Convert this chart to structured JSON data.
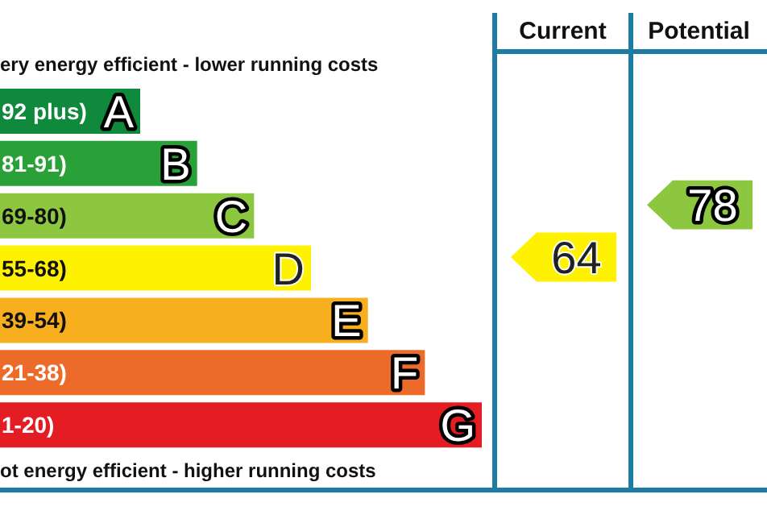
{
  "chart_data": {
    "type": "other",
    "data_labels": true,
    "annotations": [
      "ery energy efficient - lower running costs",
      "ot energy efficient - higher running costs",
      "Current",
      "Potential",
      {
        "text": "A",
        "y": "92 plus)"
      },
      {
        "text": "B",
        "y": "81-91)"
      },
      {
        "text": "C",
        "y": "69-80)"
      },
      {
        "text": "D",
        "y": "55-68)"
      },
      {
        "text": "E",
        "y": "39-54)"
      },
      {
        "text": "F",
        "y": "21-38)"
      },
      {
        "text": "G",
        "y": "1-20)"
      }
    ],
    "categories": [
      "92 plus)",
      "81-91)",
      "69-80)",
      "55-68)",
      "39-54)",
      "21-38)",
      "1-20)"
    ],
    "colors": [
      "#0f8a3c",
      "#2aa039",
      "#8dc63f",
      "#fff200",
      "#f7ae1f",
      "#ec6b2a",
      "#e31d23"
    ],
    "series": [
      {
        "x": [
          "55-68)"
        ],
        "values": [
          64
        ],
        "color": "#fff200"
      },
      {
        "x": [
          "69-80)"
        ],
        "values": [
          78
        ],
        "color": "#8dc63f"
      }
    ]
  }
}
